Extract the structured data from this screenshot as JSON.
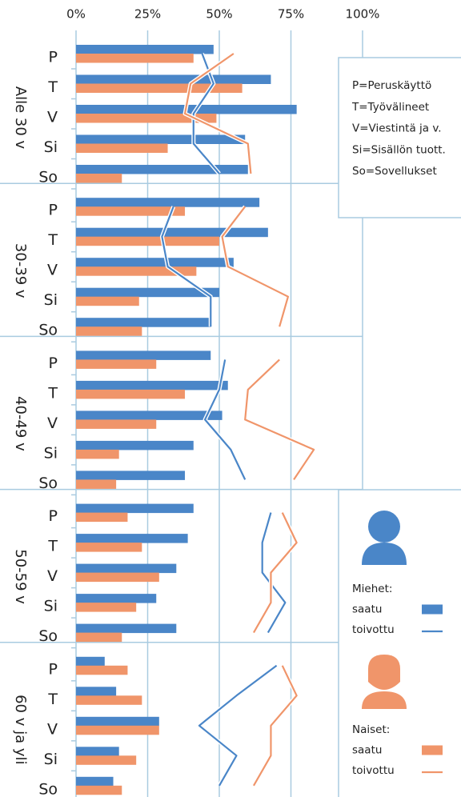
{
  "axis": {
    "xlim": [
      0,
      100
    ],
    "xticks": [
      {
        "value": 0,
        "label": "0%"
      },
      {
        "value": 25,
        "label": "25%"
      },
      {
        "value": 50,
        "label": "50%"
      },
      {
        "value": 75,
        "label": "75%"
      },
      {
        "value": 100,
        "label": "100%"
      }
    ],
    "grid": true
  },
  "key": [
    "P=Peruskäyttö",
    "T=Työvälineet",
    "V=Viestintä ja v.",
    "Si=Sisällön tuott.",
    "So=Sovellukset"
  ],
  "legend": {
    "groups": [
      {
        "name": "Miehet:",
        "items": [
          "saatu",
          "toivottu"
        ]
      },
      {
        "name": "Naiset:",
        "items": [
          "saatu",
          "toivottu"
        ]
      }
    ]
  },
  "chart_data": [
    {
      "type": "bar",
      "title": "Alle 30 v",
      "categories": [
        "P",
        "T",
        "V",
        "Si",
        "So"
      ],
      "series": [
        {
          "type": "bar",
          "color": "#4a86c8",
          "values": [
            48,
            68,
            77,
            59,
            60
          ]
        },
        {
          "type": "bar",
          "color": "#f0956a",
          "values": [
            41,
            58,
            49,
            32,
            16
          ]
        },
        {
          "type": "line",
          "color": "#4a86c8",
          "values": [
            44,
            48,
            41,
            41,
            50
          ]
        },
        {
          "type": "line",
          "color": "#f0956a",
          "values": [
            55,
            40,
            38,
            60,
            61
          ]
        }
      ]
    },
    {
      "type": "bar",
      "title": "30-39 v",
      "categories": [
        "P",
        "T",
        "V",
        "Si",
        "So"
      ],
      "series": [
        {
          "type": "bar",
          "color": "#4a86c8",
          "values": [
            64,
            67,
            55,
            50,
            47
          ]
        },
        {
          "type": "bar",
          "color": "#f0956a",
          "values": [
            38,
            50,
            42,
            22,
            23
          ]
        },
        {
          "type": "line",
          "color": "#4a86c8",
          "values": [
            34,
            30,
            32,
            47,
            47
          ]
        },
        {
          "type": "line",
          "color": "#f0956a",
          "values": [
            59,
            51,
            53,
            74,
            71
          ]
        }
      ]
    },
    {
      "type": "bar",
      "title": "40-49 v",
      "categories": [
        "P",
        "T",
        "V",
        "Si",
        "So"
      ],
      "series": [
        {
          "type": "bar",
          "color": "#4a86c8",
          "values": [
            47,
            53,
            51,
            41,
            38
          ]
        },
        {
          "type": "bar",
          "color": "#f0956a",
          "values": [
            28,
            38,
            28,
            15,
            14
          ]
        },
        {
          "type": "line",
          "color": "#4a86c8",
          "values": [
            52,
            50,
            45,
            54,
            59
          ]
        },
        {
          "type": "line",
          "color": "#f0956a",
          "values": [
            71,
            60,
            59,
            83,
            76
          ]
        }
      ]
    },
    {
      "type": "bar",
      "title": "50-59 v",
      "categories": [
        "P",
        "T",
        "V",
        "Si",
        "So"
      ],
      "series": [
        {
          "type": "bar",
          "color": "#4a86c8",
          "values": [
            41,
            39,
            35,
            28,
            35
          ]
        },
        {
          "type": "bar",
          "color": "#f0956a",
          "values": [
            18,
            23,
            29,
            21,
            16
          ]
        },
        {
          "type": "line",
          "color": "#4a86c8",
          "values": [
            68,
            65,
            65,
            73,
            67
          ]
        },
        {
          "type": "line",
          "color": "#f0956a",
          "values": [
            72,
            77,
            68,
            68,
            62
          ]
        }
      ]
    },
    {
      "type": "bar",
      "title": "60 v ja yli",
      "categories": [
        "P",
        "T",
        "V",
        "Si",
        "So"
      ],
      "series": [
        {
          "type": "bar",
          "color": "#4a86c8",
          "values": [
            10,
            14,
            29,
            15,
            13
          ]
        },
        {
          "type": "bar",
          "color": "#f0956a",
          "values": [
            18,
            23,
            29,
            21,
            16
          ]
        },
        {
          "type": "line",
          "color": "#4a86c8",
          "values": [
            70,
            56,
            43,
            56,
            50
          ]
        },
        {
          "type": "line",
          "color": "#f0956a",
          "values": [
            72,
            77,
            68,
            68,
            62
          ]
        }
      ]
    }
  ]
}
